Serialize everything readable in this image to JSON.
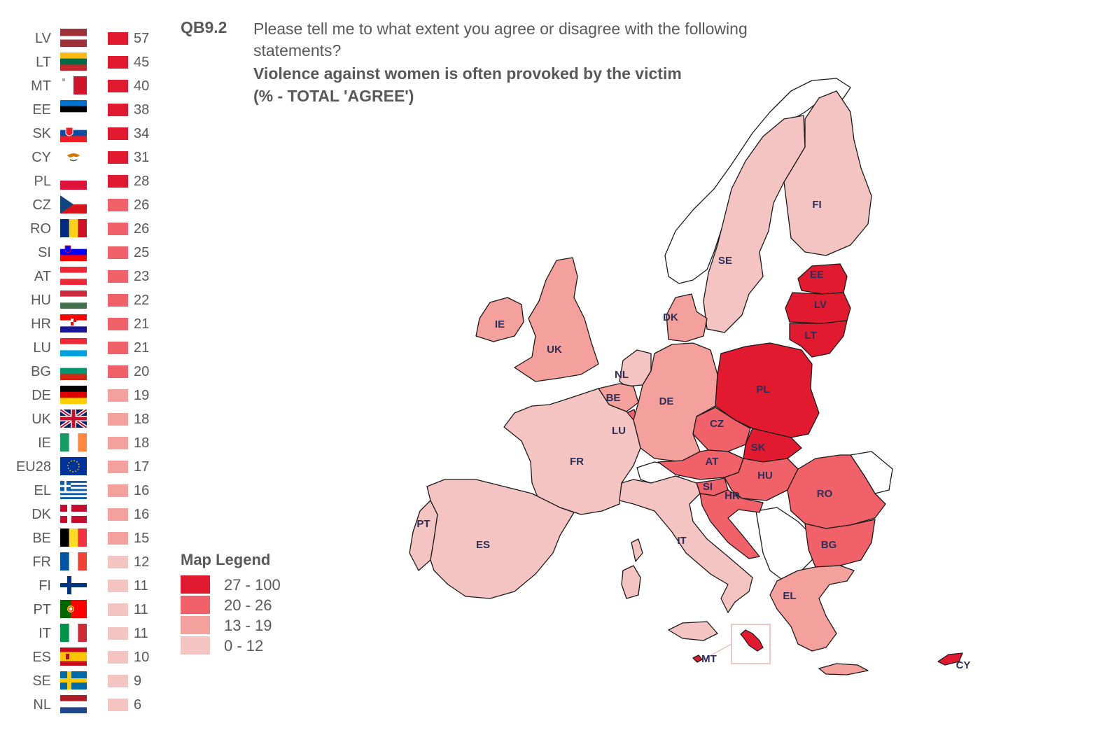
{
  "header": {
    "question_code": "QB9.2",
    "question_text": "Please tell me to what extent you agree or disagree with the following statements?",
    "statement": "Violence against women is often provoked by the victim",
    "measure": "(% - TOTAL 'AGREE')"
  },
  "colors": {
    "band_27_100": "#e21a2f",
    "band_20_26": "#f0616a",
    "band_13_19": "#f4a09c",
    "band_0_12": "#f3c4c1",
    "neutral_fill": "#ffffff",
    "border": "#1a1a1a",
    "label": "#2b2f59"
  },
  "legend": {
    "title": "Map Legend",
    "items": [
      {
        "label": "27 - 100",
        "color": "#e21a2f"
      },
      {
        "label": "20 - 26",
        "color": "#f0616a"
      },
      {
        "label": "13 - 19",
        "color": "#f4a09c"
      },
      {
        "label": "0 - 12",
        "color": "#f3c4c1"
      }
    ]
  },
  "ranking": [
    {
      "code": "LV",
      "value": 57,
      "flag": "lv-flag-icon",
      "band_color": "#e21a2f"
    },
    {
      "code": "LT",
      "value": 45,
      "flag": "lt-flag-icon",
      "band_color": "#e21a2f"
    },
    {
      "code": "MT",
      "value": 40,
      "flag": "mt-flag-icon",
      "band_color": "#e21a2f"
    },
    {
      "code": "EE",
      "value": 38,
      "flag": "ee-flag-icon",
      "band_color": "#e21a2f"
    },
    {
      "code": "SK",
      "value": 34,
      "flag": "sk-flag-icon",
      "band_color": "#e21a2f"
    },
    {
      "code": "CY",
      "value": 31,
      "flag": "cy-flag-icon",
      "band_color": "#e21a2f"
    },
    {
      "code": "PL",
      "value": 28,
      "flag": "pl-flag-icon",
      "band_color": "#e21a2f"
    },
    {
      "code": "CZ",
      "value": 26,
      "flag": "cz-flag-icon",
      "band_color": "#f0616a"
    },
    {
      "code": "RO",
      "value": 26,
      "flag": "ro-flag-icon",
      "band_color": "#f0616a"
    },
    {
      "code": "SI",
      "value": 25,
      "flag": "si-flag-icon",
      "band_color": "#f0616a"
    },
    {
      "code": "AT",
      "value": 23,
      "flag": "at-flag-icon",
      "band_color": "#f0616a"
    },
    {
      "code": "HU",
      "value": 22,
      "flag": "hu-flag-icon",
      "band_color": "#f0616a"
    },
    {
      "code": "HR",
      "value": 21,
      "flag": "hr-flag-icon",
      "band_color": "#f0616a"
    },
    {
      "code": "LU",
      "value": 21,
      "flag": "lu-flag-icon",
      "band_color": "#f0616a"
    },
    {
      "code": "BG",
      "value": 20,
      "flag": "bg-flag-icon",
      "band_color": "#f0616a"
    },
    {
      "code": "DE",
      "value": 19,
      "flag": "de-flag-icon",
      "band_color": "#f4a09c"
    },
    {
      "code": "UK",
      "value": 18,
      "flag": "uk-flag-icon",
      "band_color": "#f4a09c"
    },
    {
      "code": "IE",
      "value": 18,
      "flag": "ie-flag-icon",
      "band_color": "#f4a09c"
    },
    {
      "code": "EU28",
      "value": 17,
      "flag": "eu-flag-icon",
      "band_color": "#f4a09c"
    },
    {
      "code": "EL",
      "value": 16,
      "flag": "el-flag-icon",
      "band_color": "#f4a09c"
    },
    {
      "code": "DK",
      "value": 16,
      "flag": "dk-flag-icon",
      "band_color": "#f4a09c"
    },
    {
      "code": "BE",
      "value": 15,
      "flag": "be-flag-icon",
      "band_color": "#f4a09c"
    },
    {
      "code": "FR",
      "value": 12,
      "flag": "fr-flag-icon",
      "band_color": "#f3c4c1"
    },
    {
      "code": "FI",
      "value": 11,
      "flag": "fi-flag-icon",
      "band_color": "#f3c4c1"
    },
    {
      "code": "PT",
      "value": 11,
      "flag": "pt-flag-icon",
      "band_color": "#f3c4c1"
    },
    {
      "code": "IT",
      "value": 11,
      "flag": "it-flag-icon",
      "band_color": "#f3c4c1"
    },
    {
      "code": "ES",
      "value": 10,
      "flag": "es-flag-icon",
      "band_color": "#f3c4c1"
    },
    {
      "code": "SE",
      "value": 9,
      "flag": "se-flag-icon",
      "band_color": "#f3c4c1"
    },
    {
      "code": "NL",
      "value": 6,
      "flag": "nl-flag-icon",
      "band_color": "#f3c4c1"
    }
  ],
  "map_labels": {
    "FI": "FI",
    "SE": "SE",
    "EE": "EE",
    "LV": "LV",
    "LT": "LT",
    "DK": "DK",
    "IE": "IE",
    "UK": "UK",
    "NL": "NL",
    "BE": "BE",
    "LU": "LU",
    "DE": "DE",
    "PL": "PL",
    "CZ": "CZ",
    "SK": "SK",
    "AT": "AT",
    "HU": "HU",
    "SI": "SI",
    "HR": "HR",
    "RO": "RO",
    "BG": "BG",
    "FR": "FR",
    "PT": "PT",
    "ES": "ES",
    "IT": "IT",
    "EL": "EL",
    "MT": "MT",
    "CY": "CY"
  }
}
